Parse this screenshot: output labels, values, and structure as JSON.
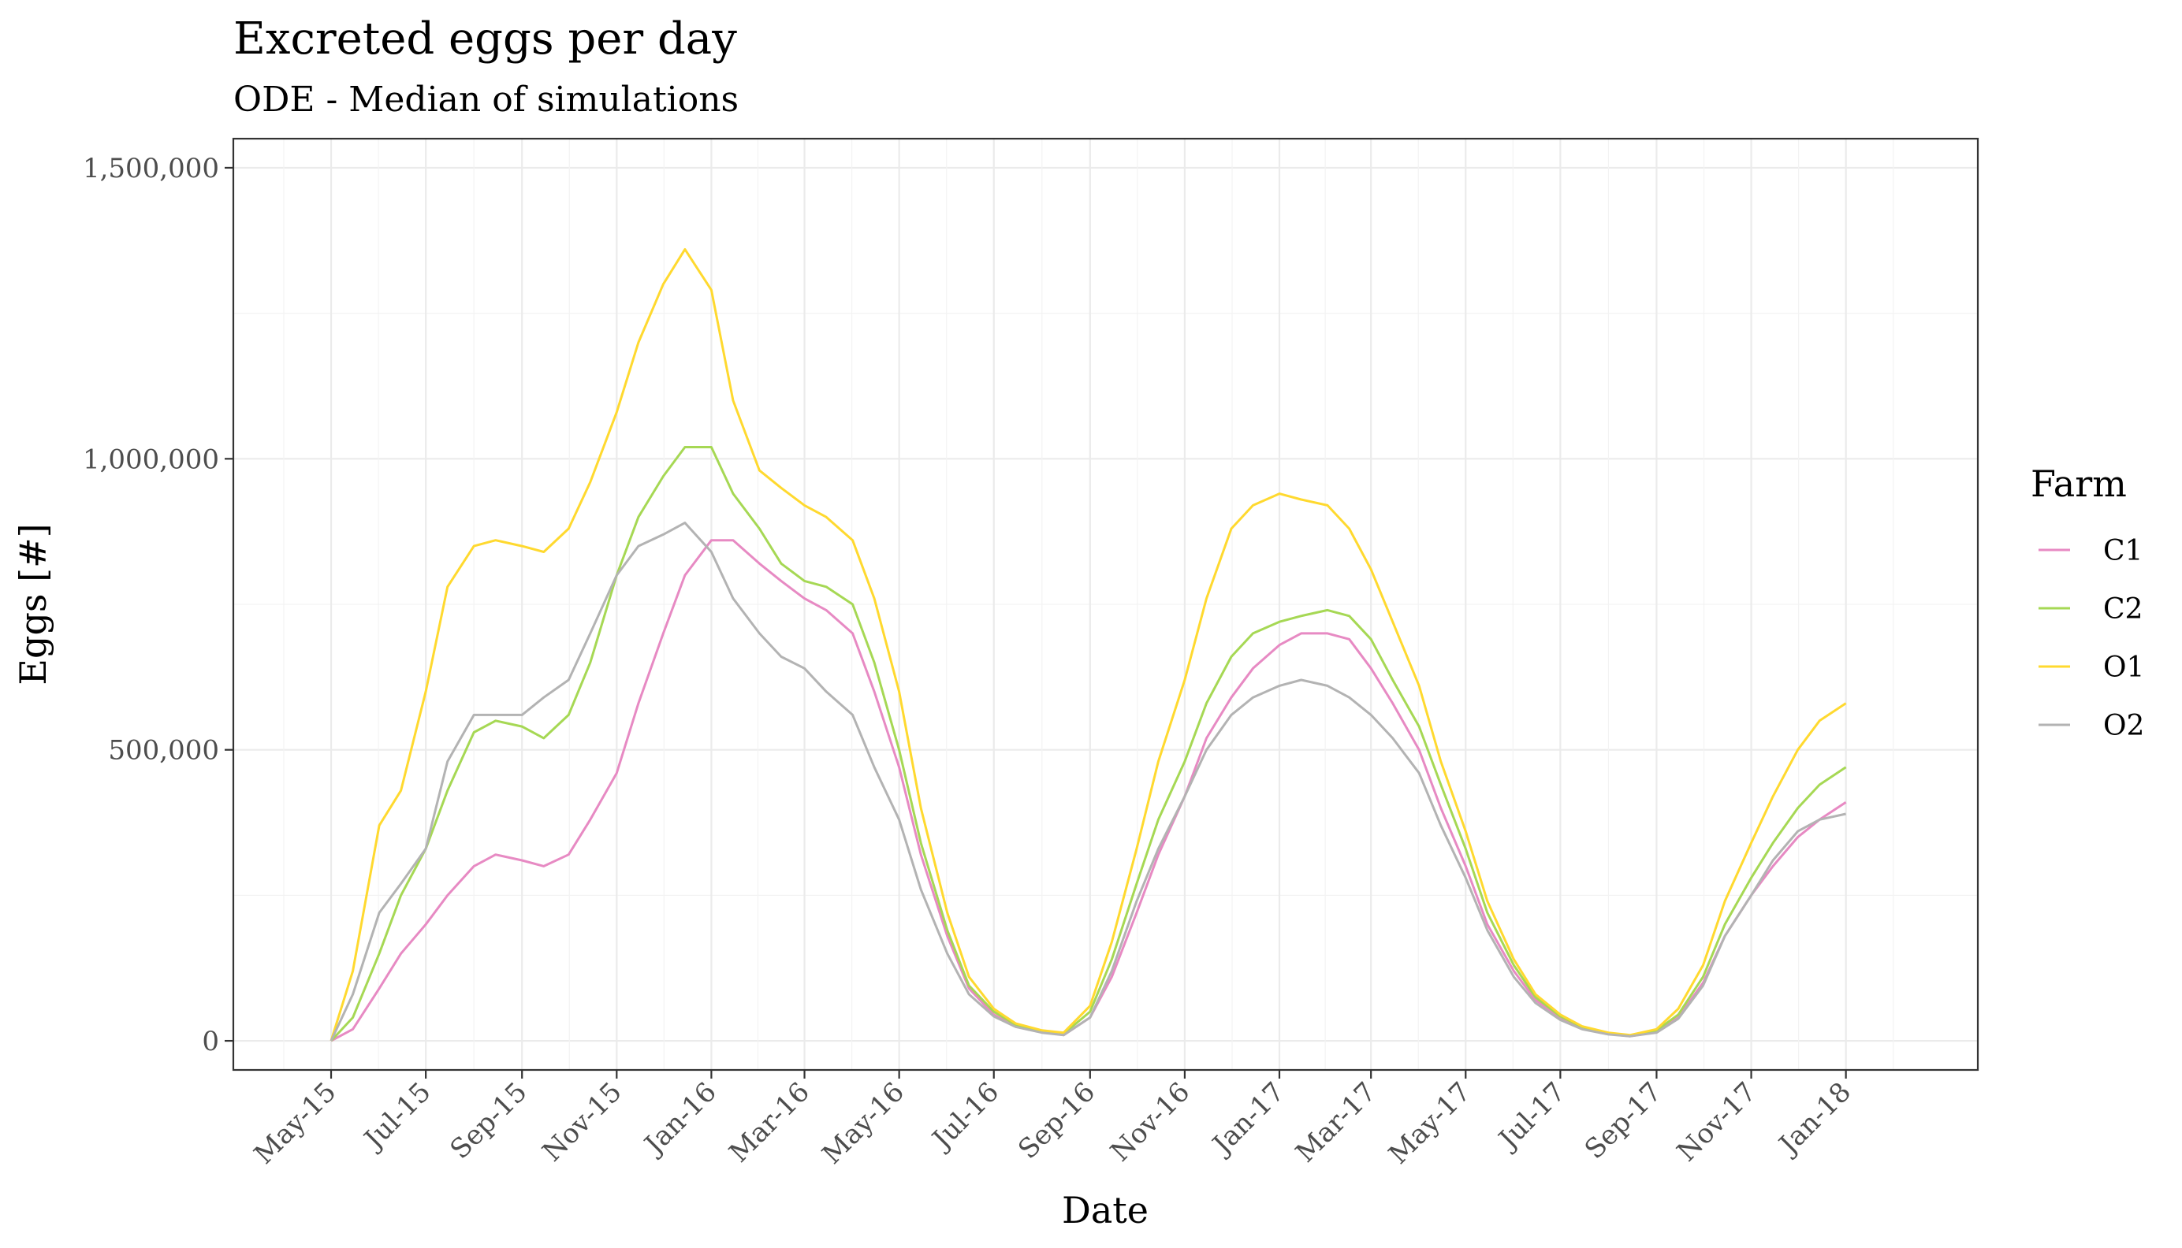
{
  "chart_data": {
    "type": "line",
    "title": "Excreted eggs per day",
    "subtitle": "ODE - Median of simulations",
    "xlabel": "Date",
    "ylabel": "Eggs [#]",
    "ylim": [
      -50000,
      1550000
    ],
    "xlim": [
      "2015-02-27",
      "2018-03-27"
    ],
    "y_ticks": [
      0,
      500000,
      1000000,
      1500000
    ],
    "y_tick_labels": [
      "0",
      "500,000",
      "1,000,000",
      "1,500,000"
    ],
    "x_ticks": [
      "2015-05-01",
      "2015-07-01",
      "2015-09-01",
      "2015-11-01",
      "2016-01-01",
      "2016-03-01",
      "2016-05-01",
      "2016-07-01",
      "2016-09-01",
      "2016-11-01",
      "2017-01-01",
      "2017-03-01",
      "2017-05-01",
      "2017-07-01",
      "2017-09-01",
      "2017-11-01",
      "2018-01-01"
    ],
    "x_tick_labels": [
      "May-15",
      "Jul-15",
      "Sep-15",
      "Nov-15",
      "Jan-16",
      "Mar-16",
      "May-16",
      "Jul-16",
      "Sep-16",
      "Nov-16",
      "Jan-17",
      "Mar-17",
      "May-17",
      "Jul-17",
      "Sep-17",
      "Nov-17",
      "Jan-18"
    ],
    "grid": true,
    "legend": {
      "title": "Farm",
      "position": "right"
    },
    "series": [
      {
        "name": "C1",
        "color": "#e78ac3",
        "x": [
          "2015-05-01",
          "2015-05-15",
          "2015-06-01",
          "2015-06-15",
          "2015-07-01",
          "2015-07-15",
          "2015-08-01",
          "2015-08-15",
          "2015-09-01",
          "2015-09-15",
          "2015-10-01",
          "2015-10-15",
          "2015-11-01",
          "2015-11-15",
          "2015-12-01",
          "2015-12-15",
          "2016-01-01",
          "2016-01-15",
          "2016-02-01",
          "2016-02-15",
          "2016-03-01",
          "2016-03-15",
          "2016-04-01",
          "2016-04-15",
          "2016-05-01",
          "2016-05-15",
          "2016-06-01",
          "2016-06-15",
          "2016-07-01",
          "2016-07-15",
          "2016-08-01",
          "2016-08-15",
          "2016-09-01",
          "2016-09-15",
          "2016-10-01",
          "2016-10-15",
          "2016-11-01",
          "2016-11-15",
          "2016-12-01",
          "2016-12-15",
          "2017-01-01",
          "2017-01-15",
          "2017-02-01",
          "2017-02-15",
          "2017-03-01",
          "2017-03-15",
          "2017-04-01",
          "2017-04-15",
          "2017-05-01",
          "2017-05-15",
          "2017-06-01",
          "2017-06-15",
          "2017-07-01",
          "2017-07-15",
          "2017-08-01",
          "2017-08-15",
          "2017-09-01",
          "2017-09-15",
          "2017-10-01",
          "2017-10-15",
          "2017-11-01",
          "2017-11-15",
          "2017-12-01",
          "2017-12-15",
          "2018-01-01"
        ],
        "y": [
          0,
          20000,
          90000,
          150000,
          200000,
          250000,
          300000,
          320000,
          310000,
          300000,
          320000,
          380000,
          460000,
          580000,
          700000,
          800000,
          860000,
          860000,
          820000,
          790000,
          760000,
          740000,
          700000,
          600000,
          470000,
          320000,
          180000,
          90000,
          45000,
          25000,
          15000,
          10000,
          40000,
          110000,
          220000,
          320000,
          420000,
          520000,
          590000,
          640000,
          680000,
          700000,
          700000,
          690000,
          640000,
          580000,
          500000,
          400000,
          300000,
          200000,
          120000,
          70000,
          40000,
          22000,
          12000,
          8000,
          15000,
          40000,
          100000,
          180000,
          250000,
          300000,
          350000,
          380000,
          410000
        ]
      },
      {
        "name": "C2",
        "color": "#a6d854",
        "x": [
          "2015-05-01",
          "2015-05-15",
          "2015-06-01",
          "2015-06-15",
          "2015-07-01",
          "2015-07-15",
          "2015-08-01",
          "2015-08-15",
          "2015-09-01",
          "2015-09-15",
          "2015-10-01",
          "2015-10-15",
          "2015-11-01",
          "2015-11-15",
          "2015-12-01",
          "2015-12-15",
          "2016-01-01",
          "2016-01-15",
          "2016-02-01",
          "2016-02-15",
          "2016-03-01",
          "2016-03-15",
          "2016-04-01",
          "2016-04-15",
          "2016-05-01",
          "2016-05-15",
          "2016-06-01",
          "2016-06-15",
          "2016-07-01",
          "2016-07-15",
          "2016-08-01",
          "2016-08-15",
          "2016-09-01",
          "2016-09-15",
          "2016-10-01",
          "2016-10-15",
          "2016-11-01",
          "2016-11-15",
          "2016-12-01",
          "2016-12-15",
          "2017-01-01",
          "2017-01-15",
          "2017-02-01",
          "2017-02-15",
          "2017-03-01",
          "2017-03-15",
          "2017-04-01",
          "2017-04-15",
          "2017-05-01",
          "2017-05-15",
          "2017-06-01",
          "2017-06-15",
          "2017-07-01",
          "2017-07-15",
          "2017-08-01",
          "2017-08-15",
          "2017-09-01",
          "2017-09-15",
          "2017-10-01",
          "2017-10-15",
          "2017-11-01",
          "2017-11-15",
          "2017-12-01",
          "2017-12-15",
          "2018-01-01"
        ],
        "y": [
          0,
          40000,
          150000,
          250000,
          330000,
          430000,
          530000,
          550000,
          540000,
          520000,
          560000,
          650000,
          800000,
          900000,
          970000,
          1020000,
          1020000,
          940000,
          880000,
          820000,
          790000,
          780000,
          750000,
          650000,
          500000,
          340000,
          190000,
          95000,
          50000,
          28000,
          16000,
          12000,
          50000,
          140000,
          270000,
          380000,
          480000,
          580000,
          660000,
          700000,
          720000,
          730000,
          740000,
          730000,
          690000,
          620000,
          540000,
          440000,
          330000,
          220000,
          130000,
          75000,
          42000,
          24000,
          13000,
          9000,
          18000,
          45000,
          110000,
          200000,
          280000,
          340000,
          400000,
          440000,
          470000
        ]
      },
      {
        "name": "O1",
        "color": "#ffd92f",
        "x": [
          "2015-05-01",
          "2015-05-15",
          "2015-06-01",
          "2015-06-15",
          "2015-07-01",
          "2015-07-15",
          "2015-08-01",
          "2015-08-15",
          "2015-09-01",
          "2015-09-15",
          "2015-10-01",
          "2015-10-15",
          "2015-11-01",
          "2015-11-15",
          "2015-12-01",
          "2015-12-15",
          "2016-01-01",
          "2016-01-15",
          "2016-02-01",
          "2016-02-15",
          "2016-03-01",
          "2016-03-15",
          "2016-04-01",
          "2016-04-15",
          "2016-05-01",
          "2016-05-15",
          "2016-06-01",
          "2016-06-15",
          "2016-07-01",
          "2016-07-15",
          "2016-08-01",
          "2016-08-15",
          "2016-09-01",
          "2016-09-15",
          "2016-10-01",
          "2016-10-15",
          "2016-11-01",
          "2016-11-15",
          "2016-12-01",
          "2016-12-15",
          "2017-01-01",
          "2017-01-15",
          "2017-02-01",
          "2017-02-15",
          "2017-03-01",
          "2017-03-15",
          "2017-04-01",
          "2017-04-15",
          "2017-05-01",
          "2017-05-15",
          "2017-06-01",
          "2017-06-15",
          "2017-07-01",
          "2017-07-15",
          "2017-08-01",
          "2017-08-15",
          "2017-09-01",
          "2017-09-15",
          "2017-10-01",
          "2017-10-15",
          "2017-11-01",
          "2017-11-15",
          "2017-12-01",
          "2017-12-15",
          "2018-01-01"
        ],
        "y": [
          0,
          120000,
          370000,
          430000,
          600000,
          780000,
          850000,
          860000,
          850000,
          840000,
          880000,
          960000,
          1080000,
          1200000,
          1300000,
          1360000,
          1290000,
          1100000,
          980000,
          950000,
          920000,
          900000,
          860000,
          760000,
          600000,
          400000,
          220000,
          110000,
          55000,
          30000,
          18000,
          14000,
          60000,
          170000,
          330000,
          480000,
          620000,
          760000,
          880000,
          920000,
          940000,
          930000,
          920000,
          880000,
          810000,
          720000,
          610000,
          480000,
          360000,
          240000,
          140000,
          80000,
          45000,
          25000,
          14000,
          10000,
          20000,
          55000,
          130000,
          240000,
          340000,
          420000,
          500000,
          550000,
          580000
        ]
      },
      {
        "name": "O2",
        "color": "#b3b3b3",
        "x": [
          "2015-05-01",
          "2015-05-15",
          "2015-06-01",
          "2015-06-15",
          "2015-07-01",
          "2015-07-15",
          "2015-08-01",
          "2015-08-15",
          "2015-09-01",
          "2015-09-15",
          "2015-10-01",
          "2015-10-15",
          "2015-11-01",
          "2015-11-15",
          "2015-12-01",
          "2015-12-15",
          "2016-01-01",
          "2016-01-15",
          "2016-02-01",
          "2016-02-15",
          "2016-03-01",
          "2016-03-15",
          "2016-04-01",
          "2016-04-15",
          "2016-05-01",
          "2016-05-15",
          "2016-06-01",
          "2016-06-15",
          "2016-07-01",
          "2016-07-15",
          "2016-08-01",
          "2016-08-15",
          "2016-09-01",
          "2016-09-15",
          "2016-10-01",
          "2016-10-15",
          "2016-11-01",
          "2016-11-15",
          "2016-12-01",
          "2016-12-15",
          "2017-01-01",
          "2017-01-15",
          "2017-02-01",
          "2017-02-15",
          "2017-03-01",
          "2017-03-15",
          "2017-04-01",
          "2017-04-15",
          "2017-05-01",
          "2017-05-15",
          "2017-06-01",
          "2017-06-15",
          "2017-07-01",
          "2017-07-15",
          "2017-08-01",
          "2017-08-15",
          "2017-09-01",
          "2017-09-15",
          "2017-10-01",
          "2017-10-15",
          "2017-11-01",
          "2017-11-15",
          "2017-12-01",
          "2017-12-15",
          "2018-01-01"
        ],
        "y": [
          0,
          80000,
          220000,
          270000,
          330000,
          480000,
          560000,
          560000,
          560000,
          590000,
          620000,
          700000,
          800000,
          850000,
          870000,
          890000,
          840000,
          760000,
          700000,
          660000,
          640000,
          600000,
          560000,
          470000,
          380000,
          260000,
          150000,
          80000,
          42000,
          24000,
          14000,
          10000,
          40000,
          120000,
          240000,
          330000,
          420000,
          500000,
          560000,
          590000,
          610000,
          620000,
          610000,
          590000,
          560000,
          520000,
          460000,
          370000,
          280000,
          190000,
          110000,
          65000,
          36000,
          20000,
          11000,
          8000,
          14000,
          38000,
          95000,
          180000,
          250000,
          310000,
          360000,
          380000,
          390000
        ]
      }
    ]
  }
}
